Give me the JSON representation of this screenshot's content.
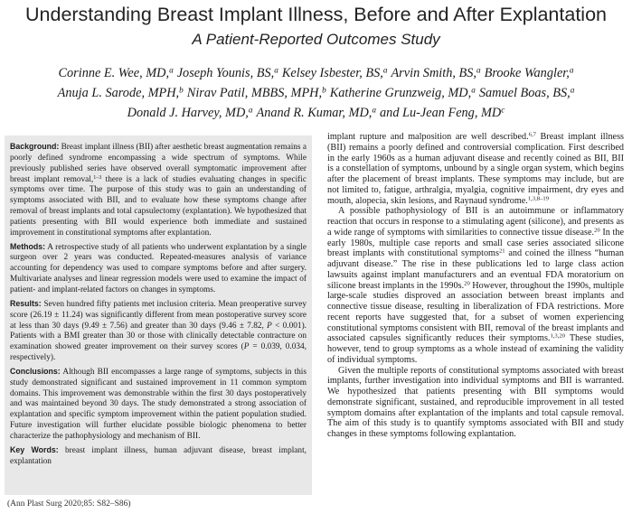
{
  "header": {
    "title": "Understanding Breast Implant Illness, Before and After Explantation",
    "subtitle": "A Patient-Reported Outcomes Study"
  },
  "authors": [
    [
      {
        "name": "Corinne E. Wee, MD,",
        "aff": "a"
      },
      {
        "name": "Joseph Younis, BS,",
        "aff": "a"
      },
      {
        "name": "Kelsey Isbester, BS,",
        "aff": "a"
      },
      {
        "name": "Arvin Smith, BS,",
        "aff": "a"
      },
      {
        "name": "Brooke Wangler,",
        "aff": "a"
      }
    ],
    [
      {
        "name": "Anuja L. Sarode, MPH,",
        "aff": "b"
      },
      {
        "name": "Nirav Patil, MBBS, MPH,",
        "aff": "b"
      },
      {
        "name": "Katherine Grunzweig, MD,",
        "aff": "a"
      },
      {
        "name": "Samuel Boas, BS,",
        "aff": "a"
      }
    ],
    [
      {
        "name": "Donald J. Harvey, MD,",
        "aff": "a"
      },
      {
        "name": "Anand R. Kumar, MD,",
        "aff": "a"
      },
      {
        "name": "and Lu-Jean Feng, MD",
        "aff": "c"
      }
    ]
  ],
  "abstract": [
    {
      "label": "Background:",
      "runs": [
        "Breast implant illness (BII) after aesthetic breast augmentation remains a poorly defined syndrome encompassing a wide spectrum of symptoms. While previously published series have observed overall symptomatic improvement after breast implant removal,",
        {
          "sup": "1–3"
        },
        " there is a lack of studies evaluating changes in specific symptoms over time. The purpose of this study was to gain an understanding of symptoms associated with BII, and to evaluate how these symptoms change after removal of breast implants and total capsulectomy (explantation). We hypothesized that patients presenting with BII would experience both immediate and sustained improvement in constitutional symptoms after explantation."
      ]
    },
    {
      "label": "Methods:",
      "runs": [
        "A retrospective study of all patients who underwent explantation by a single surgeon over 2 years was conducted. Repeated-measures analysis of variance accounting for dependency was used to compare symptoms before and after surgery. Multivariate analyses and linear regression models were used to examine the impact of patient- and implant-related factors on changes in symptoms."
      ]
    },
    {
      "label": "Results:",
      "runs": [
        "Seven hundred fifty patients met inclusion criteria. Mean preoperative survey score (26.19 ± 11.24) was significantly different from mean postoperative survey score at less than 30 days (9.49 ± 7.56) and greater than 30 days (9.46 ± 7.82, ",
        {
          "i": "P"
        },
        " < 0.001). Patients with a BMI greater than 30 or those with clinically detectable contracture on examination showed greater improvement on their survey scores (",
        {
          "i": "P"
        },
        " = 0.039, 0.034, respectively)."
      ]
    },
    {
      "label": "Conclusions:",
      "runs": [
        "Although BII encompasses a large range of symptoms, subjects in this study demonstrated significant and sustained improvement in 11 common symptom domains. This improvement was demonstrable within the first 30 days postoperatively and was maintained beyond 30 days. The study demonstrated a strong association of explantation and specific symptom improvement within the patient population studied. Future investigation will further elucidate possible biologic phenomena to better characterize the pathophysiology and mechanism of BII."
      ]
    },
    {
      "label": "Key Words:",
      "runs": [
        "breast implant illness, human adjuvant disease, breast implant, explantation"
      ]
    }
  ],
  "citation": "(Ann Plast Surg 2020;85: S82–S86)",
  "body": [
    {
      "runs": [
        "implant rupture and malposition are well described.",
        {
          "sup": "6,7"
        },
        " Breast implant illness (BII) remains a poorly defined and controversial complication. First described in the early 1960s as a human adjuvant disease and recently coined as BII, BII is a constellation of symptoms, unbound by a single organ system, which begins after the placement of breast implants. These symptoms may include, but are not limited to, fatigue, arthralgia, myalgia, cognitive impairment, dry eyes and mouth, alopecia, skin lesions, and Raynaud syndrome.",
        {
          "sup": "1,3,8–19"
        }
      ]
    },
    {
      "runs": [
        "A possible pathophysiology of BII is an autoimmune or inflammatory reaction that occurs in response to a stimulating agent (silicone), and presents as a wide range of symptoms with similarities to connective tissue disease.",
        {
          "sup": "20"
        },
        " In the early 1980s, multiple case reports and small case series associated silicone breast implants with constitutional symptoms",
        {
          "sup": "21"
        },
        " and coined the illness “human adjuvant disease.” The rise in these publications led to large class action lawsuits against implant manufacturers and an eventual FDA moratorium on silicone breast implants in the 1990s.",
        {
          "sup": "20"
        },
        " However, throughout the 1990s, multiple large-scale studies disproved an association between breast implants and connective tissue disease, resulting in liberalization of FDA restrictions. More recent reports have suggested that, for a subset of women experiencing constitutional symptoms consistent with BII, removal of the breast implants and associated capsules significantly reduces their symptoms.",
        {
          "sup": "1,3,20"
        },
        " These studies, however, tend to group symptoms as a whole instead of examining the validity of individual symptoms."
      ]
    },
    {
      "runs": [
        "Given the multiple reports of constitutional symptoms associated with breast implants, further investigation into individual symptoms and BII is warranted. We hypothesized that patients presenting with BII symptoms would demonstrate significant, sustained, and reproducible improvement in all tested symptom domains after explantation of the implants and total capsule removal. The aim of this study is to quantify symptoms associated with BII and study changes in these symptoms following explantation."
      ]
    }
  ]
}
